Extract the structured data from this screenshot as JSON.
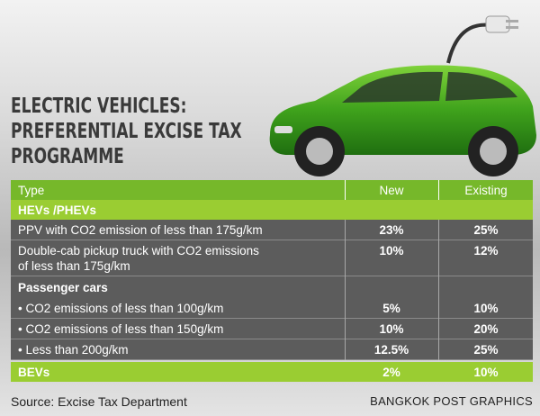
{
  "header": {
    "title_lines": [
      "ELECTRIC VEHICLES:",
      "PREFERENTIAL EXCISE TAX",
      "PROGRAMME"
    ]
  },
  "table": {
    "columns": [
      "Type",
      "New",
      "Existing"
    ],
    "groups": [
      {
        "name": "HEVs /PHEVs",
        "rows": [
          {
            "type": [
              "PPV with CO2 emission of less than 175g/km"
            ],
            "new": "23%",
            "existing": "25%"
          },
          {
            "type": [
              "Double-cab pickup truck with CO2 emissions",
              "of less than 175g/km"
            ],
            "new": "10%",
            "existing": "12%"
          }
        ],
        "subgroup": {
          "name": "Passenger cars",
          "rows": [
            {
              "type": [
                "• CO2 emissions of less than 100g/km"
              ],
              "new": "5%",
              "existing": "10%"
            },
            {
              "type": [
                "• CO2 emissions of less than 150g/km"
              ],
              "new": "10%",
              "existing": "20%"
            },
            {
              "type": [
                "• Less than 200g/km"
              ],
              "new": "12.5%",
              "existing": "25%"
            }
          ]
        }
      },
      {
        "name": "BEVs",
        "new": "2%",
        "existing": "10%"
      }
    ]
  },
  "footer": {
    "source": "Source: Excise Tax Department",
    "credit": "BANGKOK POST GRAPHICS"
  }
}
